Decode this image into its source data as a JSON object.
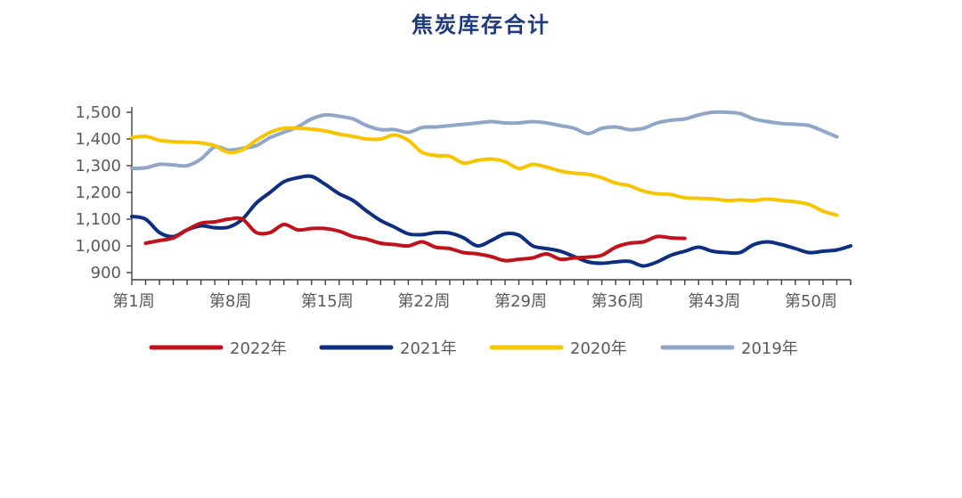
{
  "chart_data": {
    "type": "line",
    "title": "焦炭库存合计",
    "xlabel": "",
    "ylabel": "",
    "ylim": [
      900,
      1500
    ],
    "yticks": [
      "1,500",
      "1,400",
      "1,300",
      "1,200",
      "1,100",
      "1,000",
      "900"
    ],
    "ytick_values": [
      1500,
      1400,
      1300,
      1200,
      1100,
      1000,
      900
    ],
    "xticks": [
      "第1周",
      "第8周",
      "第15周",
      "第22周",
      "第29周",
      "第36周",
      "第43周",
      "第50周"
    ],
    "xtick_weeks": [
      1,
      8,
      15,
      22,
      29,
      36,
      43,
      50
    ],
    "xlim": [
      1,
      53
    ],
    "grid": false,
    "legend_position": "bottom",
    "series": [
      {
        "name": "2022年",
        "color": "#c0121b",
        "x": [
          2,
          3,
          4,
          5,
          6,
          7,
          8,
          9,
          10,
          11,
          12,
          13,
          14,
          15,
          16,
          17,
          18,
          19,
          20,
          21,
          22,
          23,
          24,
          25,
          26,
          27,
          28,
          29,
          30,
          31,
          32,
          33,
          34,
          35,
          36,
          37,
          38,
          39,
          40,
          41
        ],
        "values": [
          1010,
          1020,
          1030,
          1060,
          1085,
          1090,
          1100,
          1100,
          1050,
          1050,
          1080,
          1060,
          1065,
          1065,
          1055,
          1035,
          1025,
          1010,
          1005,
          1000,
          1015,
          995,
          990,
          975,
          970,
          960,
          945,
          950,
          955,
          970,
          950,
          955,
          958,
          965,
          995,
          1010,
          1015,
          1035,
          1030,
          1028
        ]
      },
      {
        "name": "2021年",
        "color": "#0e2f7f",
        "x": [
          1,
          2,
          3,
          4,
          5,
          6,
          7,
          8,
          9,
          10,
          11,
          12,
          13,
          14,
          15,
          16,
          17,
          18,
          19,
          20,
          21,
          22,
          23,
          24,
          25,
          26,
          27,
          28,
          29,
          30,
          31,
          32,
          33,
          34,
          35,
          36,
          37,
          38,
          39,
          40,
          41,
          42,
          43,
          44,
          45,
          46,
          47,
          48,
          49,
          50,
          51,
          52,
          53
        ],
        "values": [
          1110,
          1100,
          1050,
          1035,
          1060,
          1075,
          1068,
          1070,
          1100,
          1160,
          1200,
          1240,
          1255,
          1260,
          1230,
          1195,
          1170,
          1130,
          1095,
          1070,
          1045,
          1042,
          1050,
          1048,
          1030,
          1000,
          1020,
          1045,
          1040,
          1000,
          990,
          980,
          960,
          940,
          935,
          940,
          942,
          925,
          940,
          965,
          980,
          995,
          980,
          975,
          975,
          1005,
          1015,
          1005,
          990,
          975,
          980,
          985,
          1000
        ]
      },
      {
        "name": "2020年",
        "color": "#f7c400",
        "x": [
          1,
          2,
          3,
          4,
          5,
          6,
          7,
          8,
          9,
          10,
          11,
          12,
          13,
          14,
          15,
          16,
          17,
          18,
          19,
          20,
          21,
          22,
          23,
          24,
          25,
          26,
          27,
          28,
          29,
          30,
          31,
          32,
          33,
          34,
          35,
          36,
          37,
          38,
          39,
          40,
          41,
          42,
          43,
          44,
          45,
          46,
          47,
          48,
          49,
          50,
          51,
          52
        ],
        "values": [
          1405,
          1410,
          1395,
          1390,
          1388,
          1385,
          1375,
          1350,
          1360,
          1395,
          1425,
          1440,
          1440,
          1437,
          1430,
          1418,
          1410,
          1400,
          1400,
          1415,
          1395,
          1350,
          1338,
          1335,
          1310,
          1320,
          1325,
          1315,
          1290,
          1305,
          1295,
          1280,
          1272,
          1268,
          1255,
          1235,
          1225,
          1205,
          1195,
          1192,
          1180,
          1178,
          1176,
          1170,
          1172,
          1170,
          1175,
          1170,
          1165,
          1155,
          1130,
          1115
        ]
      },
      {
        "name": "2019年",
        "color": "#8fa6c8",
        "x": [
          1,
          2,
          3,
          4,
          5,
          6,
          7,
          8,
          9,
          10,
          11,
          12,
          13,
          14,
          15,
          16,
          17,
          18,
          19,
          20,
          21,
          22,
          23,
          24,
          25,
          26,
          27,
          28,
          29,
          30,
          31,
          32,
          33,
          34,
          35,
          36,
          37,
          38,
          39,
          40,
          41,
          42,
          43,
          44,
          45,
          46,
          47,
          48,
          49,
          50,
          51,
          52
        ],
        "values": [
          1290,
          1292,
          1305,
          1303,
          1300,
          1325,
          1370,
          1358,
          1365,
          1375,
          1405,
          1425,
          1445,
          1475,
          1490,
          1485,
          1475,
          1450,
          1435,
          1435,
          1425,
          1443,
          1445,
          1450,
          1455,
          1460,
          1465,
          1460,
          1460,
          1465,
          1460,
          1450,
          1440,
          1420,
          1440,
          1445,
          1435,
          1440,
          1460,
          1470,
          1475,
          1490,
          1500,
          1500,
          1495,
          1475,
          1465,
          1458,
          1455,
          1450,
          1430,
          1408
        ]
      }
    ]
  }
}
